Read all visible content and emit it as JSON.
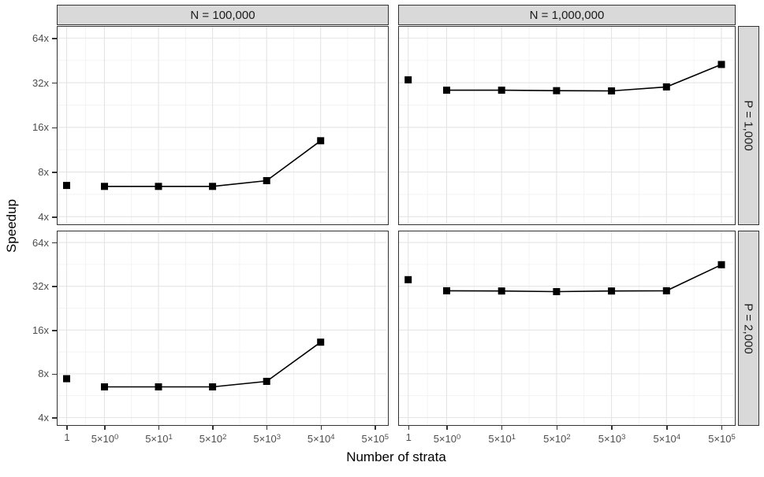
{
  "chart_data": {
    "type": "line",
    "x_label": "Number of strata",
    "y_label": "Speedup",
    "x_scale": "log10",
    "y_scale": "log2",
    "marker": "filled-square",
    "grid": true,
    "x_ticks": [
      {
        "value": 1,
        "label": "1"
      },
      {
        "value": 5,
        "label": "5×10^0"
      },
      {
        "value": 50,
        "label": "5×10^1"
      },
      {
        "value": 500,
        "label": "5×10^2"
      },
      {
        "value": 5000,
        "label": "5×10^3"
      },
      {
        "value": 50000,
        "label": "5×10^4"
      },
      {
        "value": 500000,
        "label": "5×10^5"
      }
    ],
    "y_ticks": [
      {
        "value": 4,
        "label": "4x"
      },
      {
        "value": 8,
        "label": "8x"
      },
      {
        "value": 16,
        "label": "16x"
      },
      {
        "value": 32,
        "label": "32x"
      },
      {
        "value": 64,
        "label": "64x"
      }
    ],
    "facets": {
      "columns": [
        "N = 100,000",
        "N = 1,000,000"
      ],
      "rows": [
        "P = 1,000",
        "P = 2,000"
      ]
    },
    "panels": [
      {
        "facet_col": "N = 100,000",
        "facet_row": "P = 1,000",
        "col": 0,
        "row": 0,
        "isolated_points": [
          [
            1,
            6.5
          ]
        ],
        "line": [
          [
            5,
            6.4
          ],
          [
            50,
            6.4
          ],
          [
            500,
            6.4
          ],
          [
            5000,
            7.0
          ],
          [
            50000,
            13.0
          ]
        ]
      },
      {
        "facet_col": "N = 1,000,000",
        "facet_row": "P = 1,000",
        "col": 1,
        "row": 0,
        "isolated_points": [
          [
            1,
            33.5
          ]
        ],
        "line": [
          [
            5,
            28.5
          ],
          [
            50,
            28.5
          ],
          [
            500,
            28.3
          ],
          [
            5000,
            28.2
          ],
          [
            50000,
            30.0
          ],
          [
            500000,
            42.5
          ]
        ]
      },
      {
        "facet_col": "N = 100,000",
        "facet_row": "P = 2,000",
        "col": 0,
        "row": 1,
        "isolated_points": [
          [
            1,
            7.4
          ]
        ],
        "line": [
          [
            5,
            6.5
          ],
          [
            50,
            6.5
          ],
          [
            500,
            6.5
          ],
          [
            5000,
            7.1
          ],
          [
            50000,
            13.2
          ]
        ]
      },
      {
        "facet_col": "N = 1,000,000",
        "facet_row": "P = 2,000",
        "col": 1,
        "row": 1,
        "isolated_points": [
          [
            1,
            35.5
          ]
        ],
        "line": [
          [
            5,
            29.8
          ],
          [
            50,
            29.7
          ],
          [
            500,
            29.4
          ],
          [
            5000,
            29.7
          ],
          [
            50000,
            29.8
          ],
          [
            500000,
            45.0
          ]
        ]
      }
    ]
  },
  "colors": {
    "background": "#ffffff",
    "strip_background": "#d9d9d9",
    "panel_border": "#333333",
    "grid_major": "#e4e4e4",
    "grid_minor": "#f1f1f1",
    "data": "#000000",
    "tick_label": "#4d4d4d",
    "axis_title": "#000000"
  }
}
